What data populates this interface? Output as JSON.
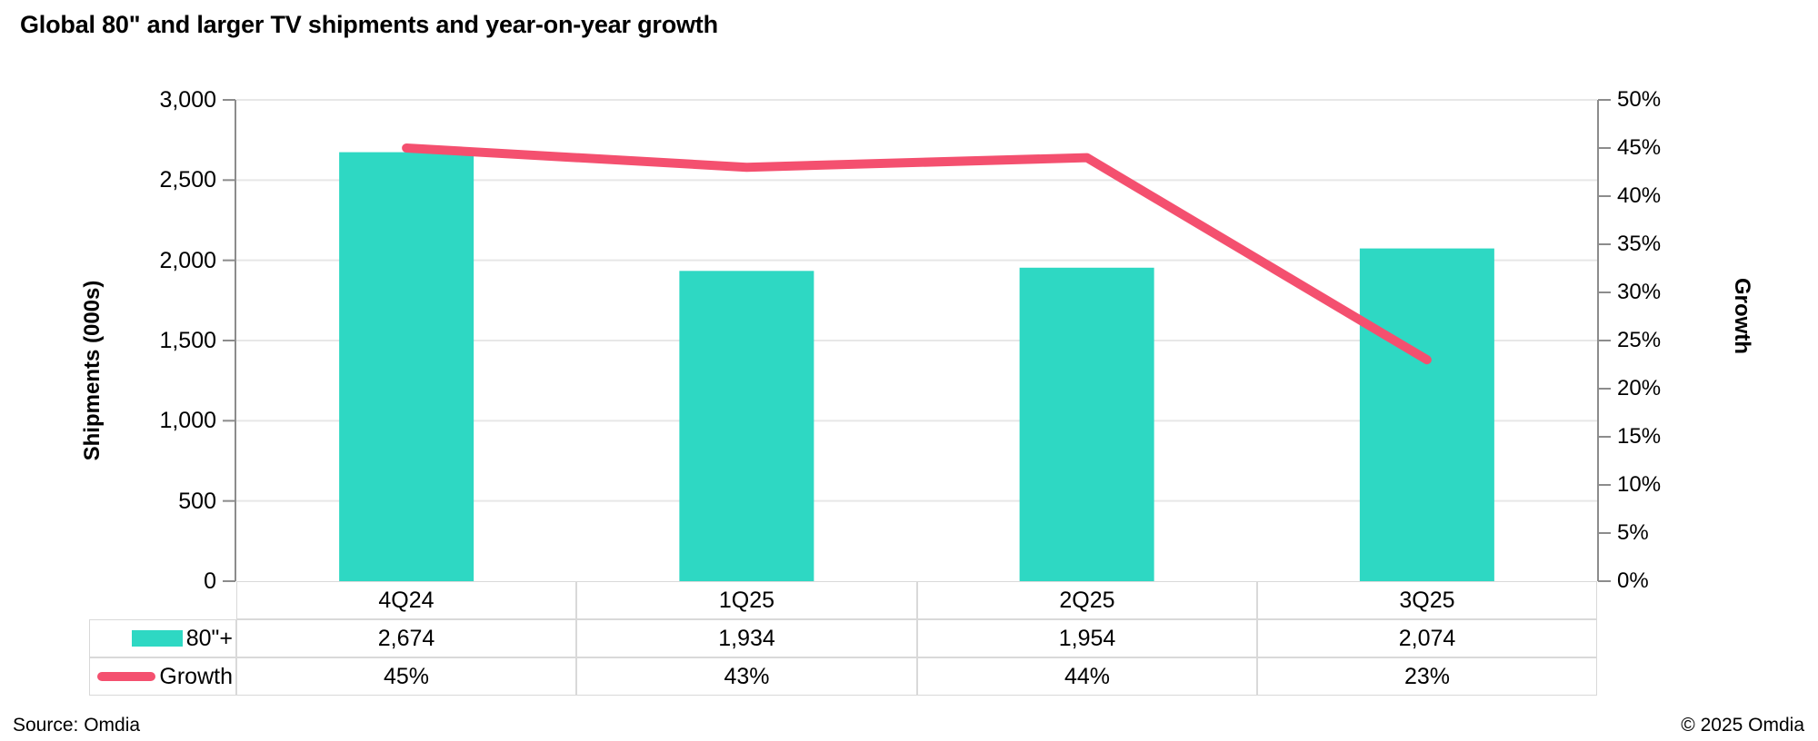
{
  "title": "Global 80\" and larger TV shipments and year-on-year growth",
  "footer": {
    "source": "Source: Omdia",
    "copyright": "© 2025 Omdia"
  },
  "colors": {
    "bar": "#2ED8C3",
    "line": "#F4506F",
    "grid": "#E7E7E7",
    "axis": "#8C8C8C",
    "table_border": "#D9D9D9"
  },
  "chart_data": {
    "type": "combo-bar-line",
    "title": "Global 80\" and larger TV shipments and year-on-year growth",
    "categories": [
      "4Q24",
      "1Q25",
      "2Q25",
      "3Q25"
    ],
    "series": [
      {
        "name": "80\"+",
        "type": "bar",
        "axis": "left",
        "color": "#2ED8C3",
        "values": [
          2674,
          1934,
          1954,
          2074
        ]
      },
      {
        "name": "Growth",
        "type": "line",
        "axis": "right",
        "color": "#F4506F",
        "values": [
          45,
          43,
          44,
          23
        ]
      }
    ],
    "left_axis": {
      "label": "Shipments (000s)",
      "min": 0,
      "max": 3000,
      "step": 500,
      "tick_labels": [
        "0",
        "500",
        "1,000",
        "1,500",
        "2,000",
        "2,500",
        "3,000"
      ]
    },
    "right_axis": {
      "label": "Growth",
      "min": 0,
      "max": 50,
      "step": 5,
      "tick_labels": [
        "0%",
        "5%",
        "10%",
        "15%",
        "20%",
        "25%",
        "30%",
        "35%",
        "40%",
        "45%",
        "50%"
      ]
    },
    "grid": true,
    "legend_position": "table-left",
    "table": {
      "header": [
        "4Q24",
        "1Q25",
        "2Q25",
        "3Q25"
      ],
      "rows": [
        {
          "label": "80\"+",
          "marker": "bar",
          "color": "#2ED8C3",
          "values": [
            "2,674",
            "1,934",
            "1,954",
            "2,074"
          ]
        },
        {
          "label": "Growth",
          "marker": "line",
          "color": "#F4506F",
          "values": [
            "45%",
            "43%",
            "44%",
            "23%"
          ]
        }
      ]
    }
  }
}
